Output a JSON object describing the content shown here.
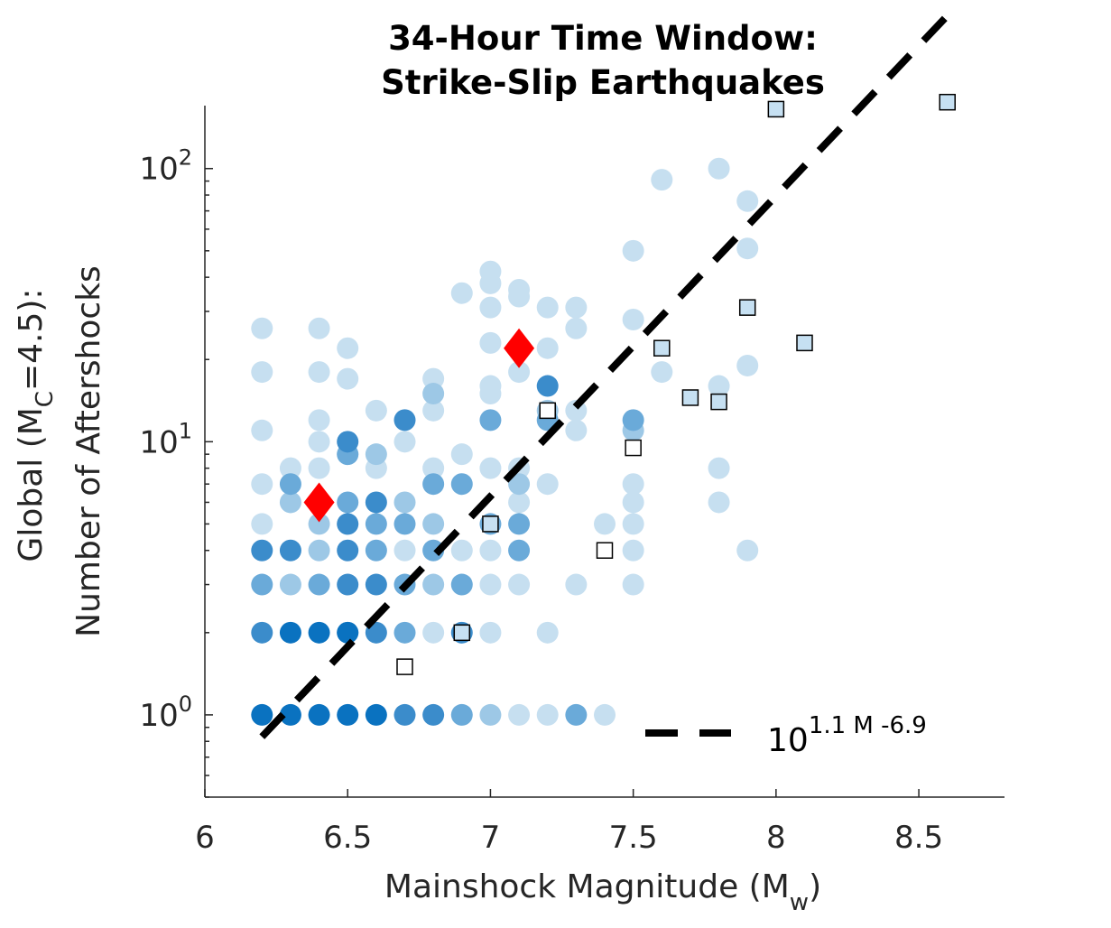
{
  "chart_data": {
    "type": "scatter",
    "title_line1": "34-Hour Time Window:",
    "title_line2": "Strike-Slip Earthquakes",
    "xlabel": "Mainshock Magnitude (M",
    "xlabel_sub": "w",
    "xlabel_end": ")",
    "ylabel_line1_pre": "Global (M",
    "ylabel_line1_sub": "C",
    "ylabel_line1_post": "=4.5):",
    "ylabel_line2": "Number of Aftershocks",
    "xlim": [
      6,
      8.8
    ],
    "ylim": [
      0.5,
      170
    ],
    "y_scale": "log",
    "x_ticks": [
      "6",
      "6.5",
      "7",
      "7.5",
      "8",
      "8.5"
    ],
    "x_tick_values": [
      6,
      6.5,
      7,
      7.5,
      8,
      8.5
    ],
    "y_tick_values": [
      1,
      10,
      100
    ],
    "y_ticks": [
      {
        "base": "10",
        "exp": "0"
      },
      {
        "base": "10",
        "exp": "1"
      },
      {
        "base": "10",
        "exp": "2"
      }
    ],
    "colors": {
      "light": "#c6dff0",
      "mid": "#9dc8e6",
      "dark": "#6aaad9",
      "darker": "#3b8ccb",
      "darkest": "#0a72c0",
      "diamond": "#ff0000",
      "square_fill": "#c6e0f2",
      "fit_line": "#000000"
    },
    "circles": {
      "darkest": [
        [
          6.2,
          1
        ],
        [
          6.3,
          1
        ],
        [
          6.4,
          1
        ],
        [
          6.5,
          1
        ],
        [
          6.6,
          1
        ],
        [
          6.3,
          2
        ],
        [
          6.4,
          2
        ],
        [
          6.5,
          2
        ]
      ],
      "darker": [
        [
          6.7,
          1
        ],
        [
          6.8,
          1
        ],
        [
          6.2,
          2
        ],
        [
          6.6,
          2
        ],
        [
          6.5,
          3
        ],
        [
          6.6,
          3
        ],
        [
          6.2,
          4
        ],
        [
          6.3,
          4
        ],
        [
          6.5,
          4
        ],
        [
          6.6,
          6
        ],
        [
          6.5,
          10
        ],
        [
          6.7,
          12
        ],
        [
          6.9,
          2
        ],
        [
          6.5,
          5
        ],
        [
          7.2,
          16
        ]
      ],
      "dark": [
        [
          6.9,
          1
        ],
        [
          7.3,
          1
        ],
        [
          6.2,
          3
        ],
        [
          6.4,
          3
        ],
        [
          6.7,
          3
        ],
        [
          6.5,
          2
        ],
        [
          6.7,
          2
        ],
        [
          6.6,
          4
        ],
        [
          6.8,
          4
        ],
        [
          6.7,
          5
        ],
        [
          6.6,
          5
        ],
        [
          6.3,
          7
        ],
        [
          6.5,
          9
        ],
        [
          6.5,
          6
        ],
        [
          6.8,
          7
        ],
        [
          6.9,
          7
        ],
        [
          6.9,
          3
        ],
        [
          7,
          12
        ],
        [
          7,
          5
        ],
        [
          7.1,
          5
        ],
        [
          7.5,
          12
        ],
        [
          7.1,
          4
        ],
        [
          7.2,
          12
        ]
      ],
      "mid": [
        [
          7,
          1
        ],
        [
          6.3,
          3
        ],
        [
          6.8,
          3
        ],
        [
          6.4,
          4
        ],
        [
          6.8,
          5
        ],
        [
          6.4,
          5
        ],
        [
          6.6,
          9
        ],
        [
          6.7,
          6
        ],
        [
          6.8,
          15
        ],
        [
          6.3,
          6
        ],
        [
          7.5,
          11
        ],
        [
          7.1,
          7
        ],
        [
          7.2,
          13
        ]
      ],
      "light": [
        [
          7.1,
          1
        ],
        [
          7.2,
          1
        ],
        [
          7.4,
          1
        ],
        [
          6.8,
          2
        ],
        [
          7,
          2
        ],
        [
          7.2,
          2
        ],
        [
          7,
          3
        ],
        [
          7.1,
          3
        ],
        [
          7.3,
          3
        ],
        [
          7.5,
          3
        ],
        [
          6.7,
          4
        ],
        [
          6.9,
          4
        ],
        [
          7,
          4
        ],
        [
          7.5,
          4
        ],
        [
          7.9,
          4
        ],
        [
          6.2,
          5
        ],
        [
          6.5,
          5
        ],
        [
          7.4,
          5
        ],
        [
          7.5,
          5
        ],
        [
          7.8,
          6
        ],
        [
          7.5,
          6
        ],
        [
          6.2,
          7
        ],
        [
          6.9,
          9
        ],
        [
          7.1,
          6
        ],
        [
          7.2,
          7
        ],
        [
          7.5,
          7
        ],
        [
          6.3,
          8
        ],
        [
          6.4,
          8
        ],
        [
          6.6,
          8
        ],
        [
          6.8,
          8
        ],
        [
          7,
          8
        ],
        [
          7.1,
          8
        ],
        [
          7.8,
          8
        ],
        [
          6.2,
          11
        ],
        [
          6.4,
          10
        ],
        [
          6.5,
          9
        ],
        [
          6.6,
          13
        ],
        [
          6.7,
          10
        ],
        [
          6.4,
          12
        ],
        [
          6.8,
          13
        ],
        [
          6.8,
          17
        ],
        [
          7,
          15
        ],
        [
          7,
          16
        ],
        [
          7.1,
          18
        ],
        [
          7.3,
          11
        ],
        [
          7.3,
          13
        ],
        [
          7.8,
          16
        ],
        [
          7.9,
          19
        ],
        [
          7.6,
          18
        ],
        [
          6.2,
          18
        ],
        [
          6.4,
          18
        ],
        [
          6.5,
          17
        ],
        [
          6.2,
          26
        ],
        [
          6.4,
          26
        ],
        [
          6.5,
          22
        ],
        [
          6.9,
          35
        ],
        [
          7,
          23
        ],
        [
          7,
          31
        ],
        [
          7,
          38
        ],
        [
          7,
          42
        ],
        [
          7.1,
          34
        ],
        [
          7.1,
          36
        ],
        [
          7.2,
          22
        ],
        [
          7.2,
          31
        ],
        [
          7.3,
          26
        ],
        [
          7.3,
          31
        ],
        [
          7.5,
          28
        ],
        [
          7.5,
          50
        ],
        [
          7.6,
          91
        ],
        [
          7.8,
          100
        ],
        [
          7.9,
          51
        ],
        [
          7.9,
          76
        ]
      ]
    },
    "diamonds": [
      [
        6.4,
        6
      ],
      [
        7.1,
        22
      ]
    ],
    "squares_filled": [
      [
        6.9,
        2
      ],
      [
        7,
        5
      ],
      [
        7.6,
        22
      ],
      [
        7.7,
        14.5
      ],
      [
        7.8,
        14
      ],
      [
        7.9,
        31
      ],
      [
        8,
        165
      ],
      [
        8.1,
        23
      ],
      [
        8.6,
        175
      ]
    ],
    "squares_open": [
      [
        6.7,
        1.5
      ],
      [
        7.2,
        13
      ],
      [
        7.4,
        4
      ],
      [
        7.5,
        9.5
      ]
    ],
    "fit_line": {
      "coef": 1.1,
      "intercept": -6.9,
      "x_range": [
        6.2,
        8.6
      ]
    },
    "legend": {
      "base": "10",
      "exponent": "1.1 M -6.9",
      "placement": "bottom-right"
    }
  }
}
